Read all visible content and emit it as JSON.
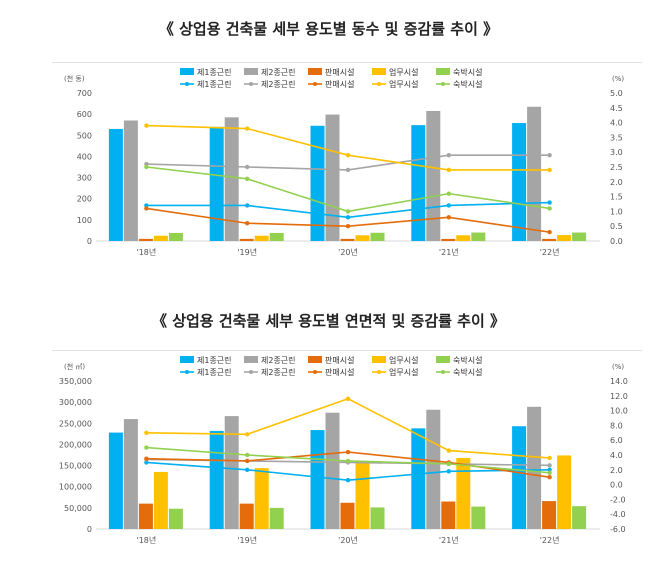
{
  "charts": [
    {
      "title": "《 상업용 건축물 세부 용도별 동수 및 증감률 추이 》",
      "unit_left": "(천 동)",
      "unit_right": "(%)",
      "chart_data": {
        "type": "bar",
        "categories": [
          "'18년",
          "'19년",
          "'20년",
          "'21년",
          "'22년"
        ],
        "series": [
          {
            "name": "제1종근린",
            "color": "#00B0F0",
            "values": [
              530,
              540,
              545,
              548,
              558
            ]
          },
          {
            "name": "제2종근린",
            "color": "#A5A5A5",
            "values": [
              570,
              585,
              598,
              615,
              635
            ]
          },
          {
            "name": "판매시설",
            "color": "#E46C0A",
            "values": [
              10,
              10,
              10,
              10,
              10
            ]
          },
          {
            "name": "업무시설",
            "color": "#FFC000",
            "values": [
              25,
              25,
              27,
              27,
              28
            ]
          },
          {
            "name": "숙박시설",
            "color": "#92D050",
            "values": [
              38,
              38,
              39,
              40,
              40
            ]
          }
        ],
        "line_series": [
          {
            "name": "제1종근린",
            "color": "#00B0F0",
            "values": [
              1.2,
              1.2,
              0.8,
              1.2,
              1.3
            ]
          },
          {
            "name": "제2종근린",
            "color": "#A5A5A5",
            "values": [
              2.6,
              2.5,
              2.4,
              2.9,
              2.9
            ]
          },
          {
            "name": "판매시설",
            "color": "#E46C0A",
            "values": [
              1.1,
              0.6,
              0.5,
              0.8,
              0.3
            ]
          },
          {
            "name": "업무시설",
            "color": "#FFC000",
            "values": [
              3.9,
              3.8,
              2.9,
              2.4,
              2.4
            ]
          },
          {
            "name": "숙박시설",
            "color": "#92D050",
            "values": [
              2.5,
              2.1,
              1.0,
              1.6,
              1.1
            ]
          }
        ],
        "y_left": {
          "min": 0,
          "max": 700,
          "ticks": [
            "0",
            "100",
            "200",
            "300",
            "400",
            "500",
            "600",
            "700"
          ]
        },
        "y_right": {
          "min": 0,
          "max": 5,
          "ticks": [
            "0.0",
            "0.5",
            "1.0",
            "1.5",
            "2.0",
            "2.5",
            "3.0",
            "3.5",
            "4.0",
            "4.5",
            "5.0"
          ]
        },
        "legend_position": "top",
        "grid": false
      }
    },
    {
      "title": "《 상업용 건축물 세부 용도별 연면적 및 증감률 추이 》",
      "unit_left": "(천 ㎡)",
      "unit_right": "(%)",
      "chart_data": {
        "type": "bar",
        "categories": [
          "'18년",
          "'19년",
          "'20년",
          "'21년",
          "'22년"
        ],
        "series": [
          {
            "name": "제1종근린",
            "color": "#00B0F0",
            "values": [
              228000,
              232000,
              234000,
              238000,
              243000
            ]
          },
          {
            "name": "제2종근린",
            "color": "#A5A5A5",
            "values": [
              260000,
              267000,
              275000,
              282000,
              289000
            ]
          },
          {
            "name": "판매시설",
            "color": "#E46C0A",
            "values": [
              60000,
              60000,
              62000,
              65000,
              66000
            ]
          },
          {
            "name": "업무시설",
            "color": "#FFC000",
            "values": [
              135000,
              144000,
              160000,
              168000,
              174000
            ]
          },
          {
            "name": "숙박시설",
            "color": "#92D050",
            "values": [
              48000,
              50000,
              51000,
              53000,
              54000
            ]
          }
        ],
        "line_series": [
          {
            "name": "제1종근린",
            "color": "#00B0F0",
            "values": [
              3.0,
              2.0,
              0.6,
              1.8,
              2.0
            ]
          },
          {
            "name": "제2종근린",
            "color": "#A5A5A5",
            "values": [
              3.4,
              3.2,
              3.0,
              2.8,
              2.6
            ]
          },
          {
            "name": "판매시설",
            "color": "#E46C0A",
            "values": [
              3.5,
              3.2,
              4.4,
              3.0,
              1.0
            ]
          },
          {
            "name": "업무시설",
            "color": "#FFC000",
            "values": [
              7.0,
              6.8,
              11.6,
              4.6,
              3.6
            ]
          },
          {
            "name": "숙박시설",
            "color": "#92D050",
            "values": [
              5.0,
              4.0,
              3.2,
              2.8,
              1.6
            ]
          }
        ],
        "y_left": {
          "min": 0,
          "max": 350000,
          "ticks": [
            "0",
            "50,000",
            "100,000",
            "150,000",
            "200,000",
            "250,000",
            "300,000",
            "350,000"
          ]
        },
        "y_right": {
          "min": -6,
          "max": 14,
          "ticks": [
            "-6.0",
            "-4.0",
            "-2.0",
            "0.0",
            "2.0",
            "4.0",
            "6.0",
            "8.0",
            "10.0",
            "12.0",
            "14.0"
          ]
        },
        "legend_position": "top",
        "grid": false
      }
    }
  ]
}
